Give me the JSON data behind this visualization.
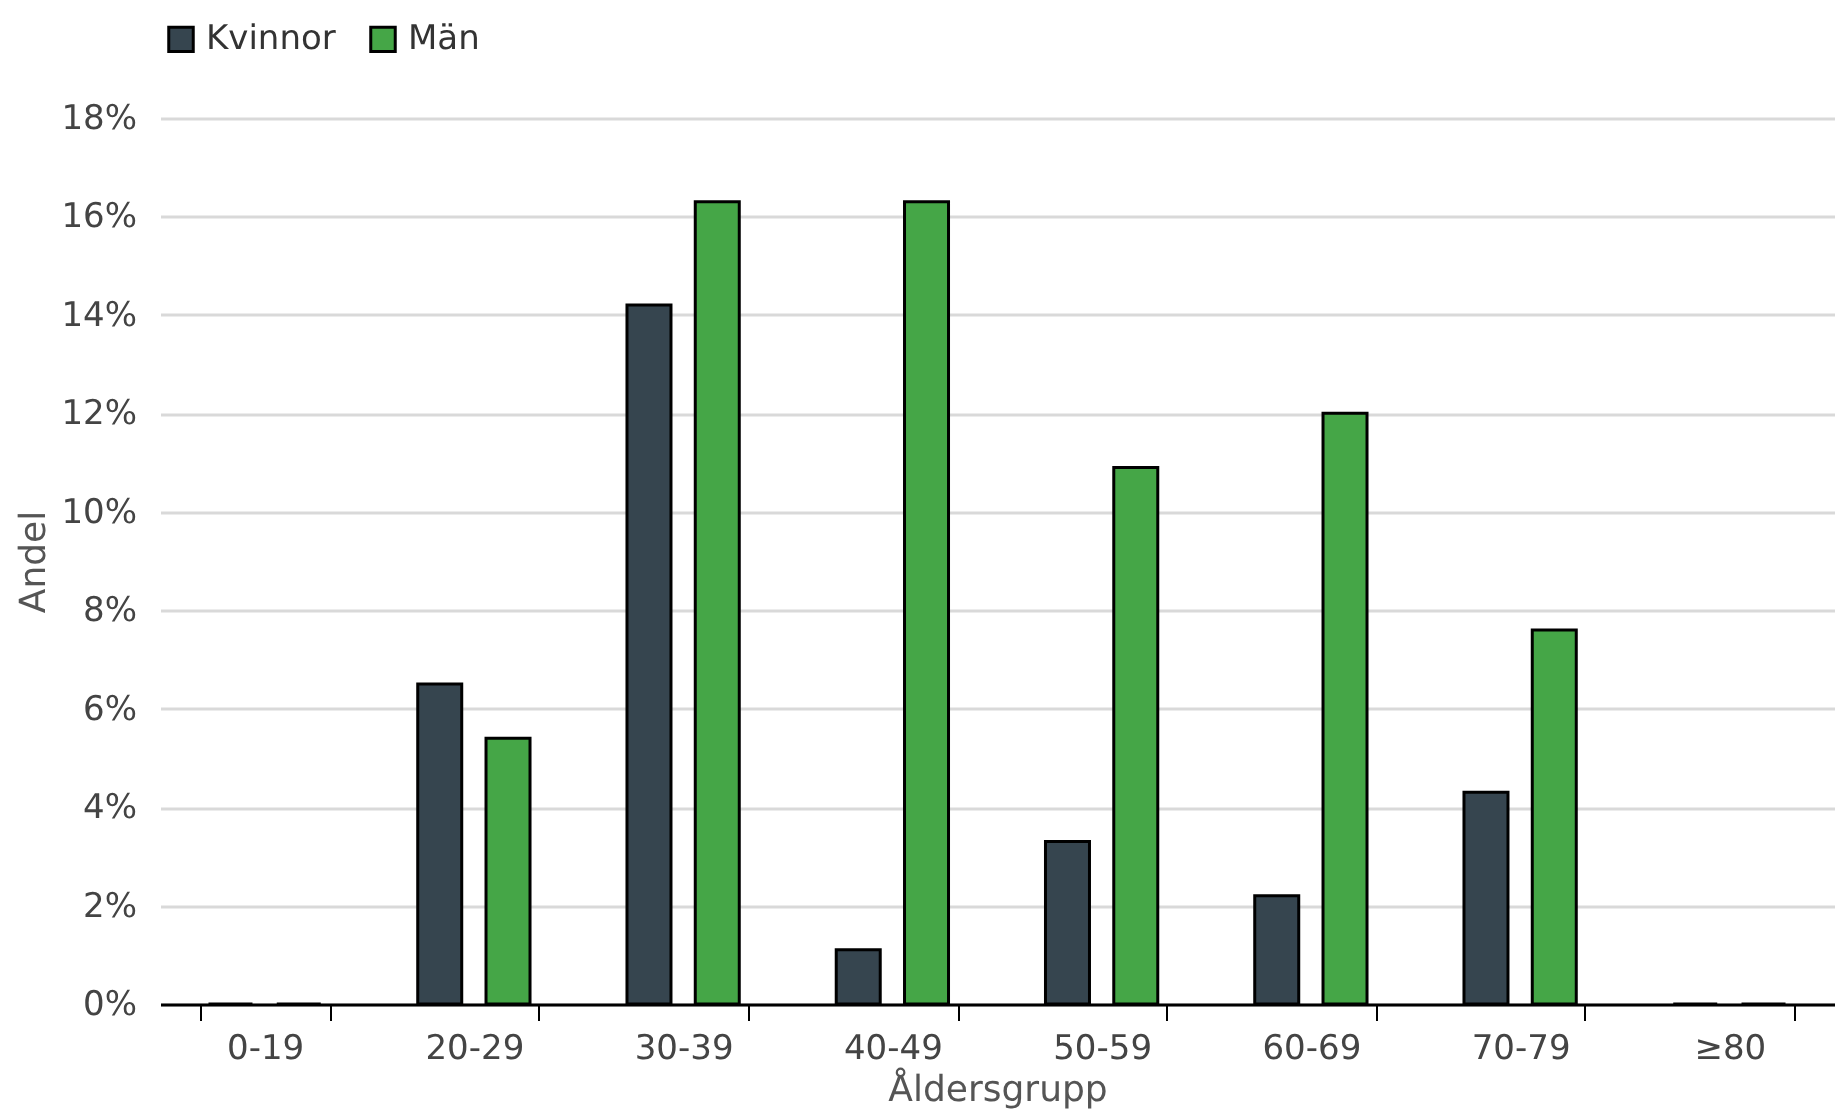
{
  "chart_data": {
    "type": "bar",
    "xlabel": "Åldersgrupp",
    "ylabel": "Andel",
    "categories": [
      "0-19",
      "20-29",
      "30-39",
      "40-49",
      "50-59",
      "60-69",
      "70-79",
      "≥80"
    ],
    "series": [
      {
        "name": "Kvinnor",
        "color": "#36454f",
        "values": [
          0,
          6.5,
          14.2,
          1.1,
          3.3,
          2.2,
          4.3,
          0
        ]
      },
      {
        "name": "Män",
        "color": "#45a647",
        "values": [
          0,
          5.4,
          16.3,
          16.3,
          10.9,
          12.0,
          7.6,
          0
        ]
      }
    ],
    "ylim": [
      0,
      18
    ],
    "yticks": [
      {
        "value": 0,
        "label": "0%"
      },
      {
        "value": 2,
        "label": "2%"
      },
      {
        "value": 4,
        "label": "4%"
      },
      {
        "value": 6,
        "label": "6%"
      },
      {
        "value": 8,
        "label": "8%"
      },
      {
        "value": 10,
        "label": "10%"
      },
      {
        "value": 12,
        "label": "12%"
      },
      {
        "value": 14,
        "label": "14%"
      },
      {
        "value": 16,
        "label": "16%"
      },
      {
        "value": 18,
        "label": "18%"
      }
    ],
    "grid": "y",
    "legend": "top left"
  }
}
